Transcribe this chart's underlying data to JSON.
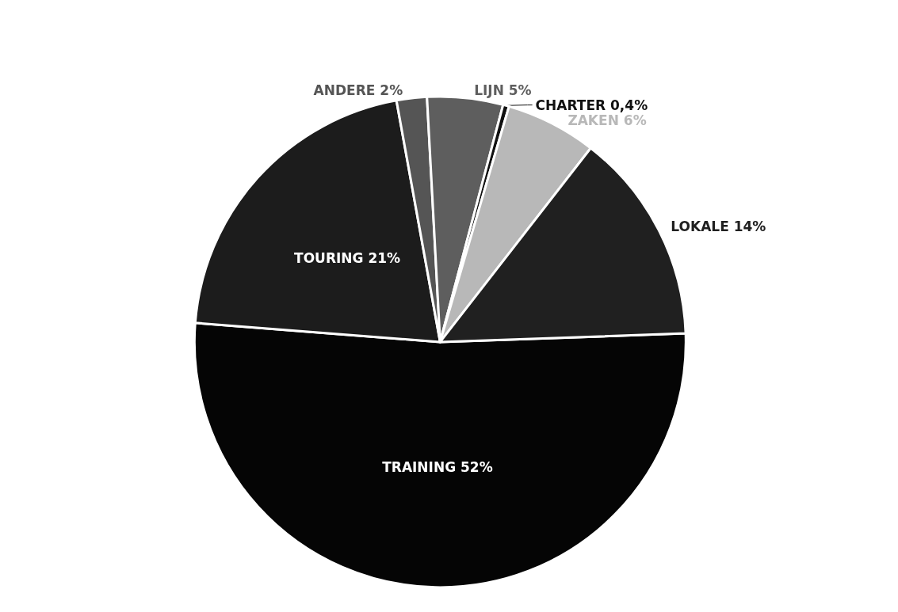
{
  "chart_data": {
    "type": "pie",
    "categories": [
      "TRAINING",
      "TOURING",
      "ANDERE",
      "LIJN",
      "CHARTER",
      "ZAKEN",
      "LOKALE"
    ],
    "values": [
      52,
      21,
      2,
      5,
      0.4,
      6,
      14
    ],
    "value_labels": [
      "52%",
      "21%",
      "2%",
      "5%",
      "0,4%",
      "6%",
      "14%"
    ],
    "colors": [
      "#050505",
      "#1c1c1c",
      "#555555",
      "#5e5e5e",
      "#111111",
      "#b8b8b8",
      "#202020"
    ],
    "legend": false
  }
}
